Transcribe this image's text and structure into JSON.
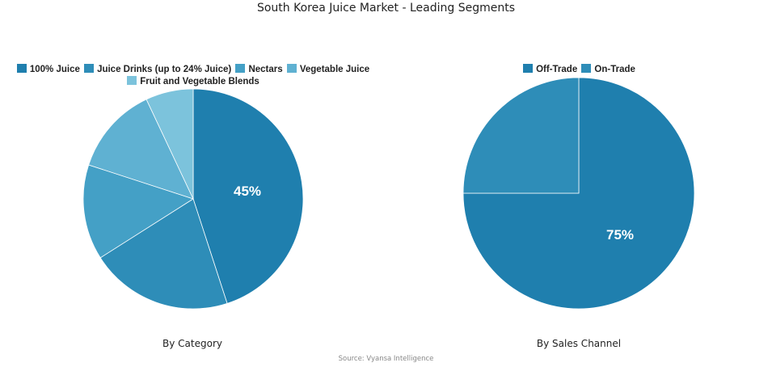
{
  "title": "South Korea Juice Market - Leading Segments",
  "source": "Source: Vyansa Intelligence",
  "charts": {
    "category": {
      "subtitle": "By Category",
      "legend": [
        {
          "label": "100% Juice",
          "color": "#1f7fae"
        },
        {
          "label": "Juice Drinks (up to 24% Juice)",
          "color": "#2e8db8"
        },
        {
          "label": "Nectars",
          "color": "#44a0c6"
        },
        {
          "label": "Vegetable Juice",
          "color": "#5fb1d2"
        },
        {
          "label": "Fruit and Vegetable Blends",
          "color": "#7cc3dc"
        }
      ],
      "label": "45%"
    },
    "channel": {
      "subtitle": "By Sales Channel",
      "legend": [
        {
          "label": "Off-Trade",
          "color": "#1f7fae"
        },
        {
          "label": "On-Trade",
          "color": "#2e8db8"
        }
      ],
      "label": "75%"
    }
  },
  "chart_data": [
    {
      "type": "pie",
      "title": "By Category",
      "categories": [
        "100% Juice",
        "Juice Drinks (up to 24% Juice)",
        "Nectars",
        "Vegetable Juice",
        "Fruit and Vegetable Blends"
      ],
      "values": [
        45,
        21,
        14,
        13,
        7
      ],
      "colors": [
        "#1f7fae",
        "#2e8db8",
        "#44a0c6",
        "#5fb1d2",
        "#7cc3dc"
      ],
      "data_labels": [
        "45%",
        "",
        "",
        "",
        ""
      ],
      "legend_position": "top"
    },
    {
      "type": "pie",
      "title": "By Sales Channel",
      "categories": [
        "Off-Trade",
        "On-Trade"
      ],
      "values": [
        75,
        25
      ],
      "colors": [
        "#1f7fae",
        "#2e8db8"
      ],
      "data_labels": [
        "75%",
        ""
      ],
      "legend_position": "top"
    }
  ]
}
